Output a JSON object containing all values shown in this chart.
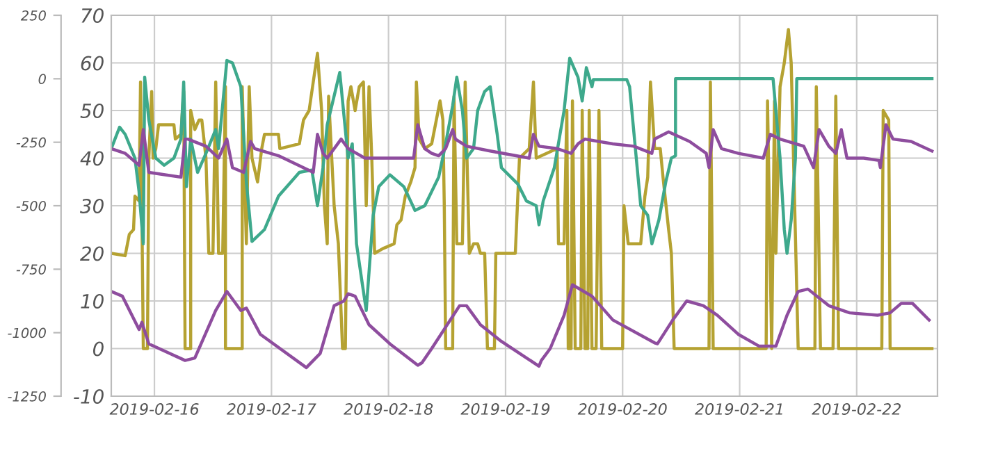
{
  "chart_data": {
    "type": "line",
    "xlim": [
      "2019-02-15T15:09",
      "2019-02-22T16:34"
    ],
    "xticks": [
      "2019-02-16",
      "2019-02-17",
      "2019-02-18",
      "2019-02-19",
      "2019-02-20",
      "2019-02-21",
      "2019-02-22"
    ],
    "ylim": [
      -10,
      70
    ],
    "yticks": [
      -10,
      0,
      10,
      20,
      30,
      40,
      50,
      60,
      70
    ],
    "y2lim": [
      -1250,
      250
    ],
    "y2ticks": [
      -1250,
      -1000,
      -750,
      -500,
      -250,
      0,
      250
    ],
    "grid": true,
    "marker": "none",
    "line_style": "solid",
    "series": [
      {
        "color": "#b5a232",
        "x": [
          "2019-02-15T15:09",
          "2019-02-15T18:00",
          "2019-02-15T18:51",
          "2019-02-15T19:43",
          "2019-02-15T20:00",
          "2019-02-15T20:51",
          "2019-02-15T21:09",
          "2019-02-15T21:43",
          "2019-02-15T22:34",
          "2019-02-15T22:51",
          "2019-02-15T23:26",
          "2019-02-15T23:43",
          "2019-02-16T00:17",
          "2019-02-16T00:51",
          "2019-02-16T04:00",
          "2019-02-16T04:17",
          "2019-02-16T05:26",
          "2019-02-16T06:00",
          "2019-02-16T06:17",
          "2019-02-16T07:26",
          "2019-02-16T07:26",
          "2019-02-16T08:17",
          "2019-02-16T09:09",
          "2019-02-16T09:43",
          "2019-02-16T10:34",
          "2019-02-16T11:09",
          "2019-02-16T12:00",
          "2019-02-16T12:34",
          "2019-02-16T13:09",
          "2019-02-16T14:00",
          "2019-02-16T14:34",
          "2019-02-16T14:34",
          "2019-02-16T18:00",
          "2019-02-16T18:00",
          "2019-02-16T18:51",
          "2019-02-16T19:26",
          "2019-02-16T20:00",
          "2019-02-16T21:09",
          "2019-02-16T22:00",
          "2019-02-16T22:34",
          "2019-02-17T01:26",
          "2019-02-17T01:43",
          "2019-02-17T05:43",
          "2019-02-17T06:34",
          "2019-02-17T07:43",
          "2019-02-17T08:51",
          "2019-02-17T09:26",
          "2019-02-17T10:17",
          "2019-02-17T10:51",
          "2019-02-17T11:26",
          "2019-02-17T11:43",
          "2019-02-17T12:51",
          "2019-02-17T13:43",
          "2019-02-17T14:34",
          "2019-02-17T15:09",
          "2019-02-17T15:43",
          "2019-02-17T16:17",
          "2019-02-17T17:09",
          "2019-02-17T18:00",
          "2019-02-17T18:51",
          "2019-02-17T19:26",
          "2019-02-17T20:00",
          "2019-02-17T20:34",
          "2019-02-17T21:09",
          "2019-02-17T22:51",
          "2019-02-18T01:09",
          "2019-02-18T01:43",
          "2019-02-18T02:34",
          "2019-02-18T03:26",
          "2019-02-18T04:34",
          "2019-02-18T05:26",
          "2019-02-18T05:43",
          "2019-02-18T06:17",
          "2019-02-18T07:26",
          "2019-02-18T08:51",
          "2019-02-18T10:34",
          "2019-02-18T11:09",
          "2019-02-18T11:26",
          "2019-02-18T11:43",
          "2019-02-18T13:09",
          "2019-02-18T13:26",
          "2019-02-18T14:00",
          "2019-02-18T15:09",
          "2019-02-18T15:43",
          "2019-02-18T16:34",
          "2019-02-18T17:26",
          "2019-02-18T18:17",
          "2019-02-18T18:51",
          "2019-02-18T19:43",
          "2019-02-18T20:17",
          "2019-02-18T21:43",
          "2019-02-18T22:00",
          "2019-02-19T02:00",
          "2019-02-19T02:51",
          "2019-02-19T04:51",
          "2019-02-19T05:43",
          "2019-02-19T06:17",
          "2019-02-19T10:34",
          "2019-02-19T10:51",
          "2019-02-19T12:00",
          "2019-02-19T12:34",
          "2019-02-19T12:51",
          "2019-02-19T13:26",
          "2019-02-19T13:43",
          "2019-02-19T14:17",
          "2019-02-19T15:26",
          "2019-02-19T15:43",
          "2019-02-19T16:17",
          "2019-02-19T16:51",
          "2019-02-19T17:09",
          "2019-02-19T17:43",
          "2019-02-19T18:34",
          "2019-02-19T19:09",
          "2019-02-19T19:43",
          "2019-02-20T00:00",
          "2019-02-20T00:17",
          "2019-02-20T01:09",
          "2019-02-20T03:43",
          "2019-02-20T04:34",
          "2019-02-20T05:09",
          "2019-02-20T05:43",
          "2019-02-20T06:34",
          "2019-02-20T07:43",
          "2019-02-20T08:17",
          "2019-02-20T09:26",
          "2019-02-20T10:00",
          "2019-02-20T10:34",
          "2019-02-20T17:43",
          "2019-02-20T18:00",
          "2019-02-20T18:34",
          "2019-02-21T05:26",
          "2019-02-21T05:43",
          "2019-02-21T06:34",
          "2019-02-21T07:09",
          "2019-02-21T07:26",
          "2019-02-21T08:17",
          "2019-02-21T09:09",
          "2019-02-21T10:00",
          "2019-02-21T10:34",
          "2019-02-21T12:00",
          "2019-02-21T15:26",
          "2019-02-21T15:43",
          "2019-02-21T16:34",
          "2019-02-21T19:09",
          "2019-02-21T19:43",
          "2019-02-21T20:17",
          "2019-02-22T05:09",
          "2019-02-22T05:26",
          "2019-02-22T06:34",
          "2019-02-22T06:51",
          "2019-02-22T15:26"
        ],
        "values": [
          20,
          19.5,
          24,
          25,
          32,
          31,
          56,
          0,
          0,
          40,
          54,
          40,
          42,
          47,
          47,
          44,
          45,
          54,
          0,
          0,
          50,
          46,
          48,
          48,
          40,
          20,
          20,
          56,
          20,
          20,
          55,
          0,
          0,
          55,
          22,
          55,
          40,
          35,
          42,
          45,
          45,
          42,
          43,
          48,
          50,
          58,
          62,
          50,
          30,
          22,
          53,
          30,
          22,
          0,
          0,
          52,
          55,
          50,
          55,
          56,
          30,
          55,
          40,
          20,
          21,
          22,
          26,
          27,
          32,
          35,
          38,
          56,
          44,
          42,
          43,
          52,
          48,
          30,
          0,
          0,
          53,
          22,
          22,
          56,
          20,
          22,
          22,
          20,
          20,
          0,
          0,
          20,
          20,
          40,
          42,
          56,
          40,
          42,
          22,
          22,
          50,
          0,
          0,
          52,
          0,
          0,
          50,
          0,
          0,
          50,
          0,
          0,
          50,
          0,
          0,
          30,
          22,
          22,
          32,
          36,
          56,
          42,
          42,
          36,
          25,
          20,
          0,
          0,
          56,
          0,
          0,
          52,
          0,
          52,
          20,
          55,
          60,
          67,
          60,
          0,
          0,
          55,
          0,
          0,
          53,
          0,
          0,
          50,
          48,
          0,
          0
        ]
      },
      {
        "color": "#3ea98c",
        "x": [
          "2019-02-15T15:09",
          "2019-02-15T16:51",
          "2019-02-15T18:00",
          "2019-02-15T20:00",
          "2019-02-15T20:51",
          "2019-02-15T21:43",
          "2019-02-15T22:00",
          "2019-02-15T22:51",
          "2019-02-16T00:17",
          "2019-02-16T02:00",
          "2019-02-16T04:00",
          "2019-02-16T05:26",
          "2019-02-16T06:00",
          "2019-02-16T06:34",
          "2019-02-16T07:26",
          "2019-02-16T08:51",
          "2019-02-16T10:34",
          "2019-02-16T12:34",
          "2019-02-16T13:09",
          "2019-02-16T14:51",
          "2019-02-16T16:00",
          "2019-02-16T17:43",
          "2019-02-16T18:51",
          "2019-02-16T20:00",
          "2019-02-16T22:34",
          "2019-02-17T01:26",
          "2019-02-17T05:43",
          "2019-02-17T08:17",
          "2019-02-17T09:26",
          "2019-02-17T10:34",
          "2019-02-17T11:26",
          "2019-02-17T14:00",
          "2019-02-17T15:43",
          "2019-02-17T16:34",
          "2019-02-17T17:26",
          "2019-02-17T18:34",
          "2019-02-17T19:26",
          "2019-02-17T20:51",
          "2019-02-17T22:00",
          "2019-02-18T00:17",
          "2019-02-18T03:09",
          "2019-02-18T05:26",
          "2019-02-18T07:26",
          "2019-02-18T10:17",
          "2019-02-18T11:43",
          "2019-02-18T13:09",
          "2019-02-18T14:00",
          "2019-02-18T15:09",
          "2019-02-18T16:00",
          "2019-02-18T17:26",
          "2019-02-18T18:17",
          "2019-02-18T19:43",
          "2019-02-18T20:51",
          "2019-02-18T22:17",
          "2019-02-18T23:09",
          "2019-02-19T02:34",
          "2019-02-19T04:17",
          "2019-02-19T06:17",
          "2019-02-19T06:51",
          "2019-02-19T07:43",
          "2019-02-19T10:00",
          "2019-02-19T12:00",
          "2019-02-19T13:09",
          "2019-02-19T14:51",
          "2019-02-19T15:43",
          "2019-02-19T16:34",
          "2019-02-19T17:43",
          "2019-02-19T18:00",
          "2019-02-20T00:51",
          "2019-02-20T01:26",
          "2019-02-20T03:43",
          "2019-02-20T05:09",
          "2019-02-20T06:00",
          "2019-02-20T07:26",
          "2019-02-20T08:51",
          "2019-02-20T10:00",
          "2019-02-20T10:51",
          "2019-02-20T10:51",
          "2019-02-21T06:51",
          "2019-02-21T08:17",
          "2019-02-21T09:09",
          "2019-02-21T09:43",
          "2019-02-21T10:34",
          "2019-02-21T11:26",
          "2019-02-21T11:43",
          "2019-02-22T15:26"
        ],
        "values": [
          42,
          46.5,
          45,
          40,
          33,
          22,
          57,
          48,
          40,
          38.5,
          40,
          44,
          56,
          34,
          44,
          37,
          41,
          46,
          42,
          60.5,
          60,
          55,
          35,
          22.5,
          25,
          32,
          37,
          37.5,
          30,
          38,
          47,
          58,
          40,
          43,
          22,
          14,
          8,
          28,
          34,
          36.5,
          34,
          29,
          30,
          36,
          43,
          51,
          57,
          50,
          40,
          42,
          50,
          54,
          55,
          45,
          38,
          34.5,
          31,
          30,
          26,
          31,
          38,
          50,
          61,
          57,
          52,
          59,
          55,
          56.5,
          56.5,
          55,
          30,
          28,
          22,
          27,
          35,
          40,
          40.5,
          56.7,
          56.7,
          40,
          25,
          20,
          27,
          40,
          56.7,
          56.7
        ]
      },
      {
        "color": "#8e4d9e",
        "x": [
          "2019-02-15T15:09",
          "2019-02-15T18:00",
          "2019-02-15T20:51",
          "2019-02-15T21:43",
          "2019-02-15T22:51",
          "2019-02-16T05:26",
          "2019-02-16T06:17",
          "2019-02-16T06:51",
          "2019-02-16T10:34",
          "2019-02-16T13:09",
          "2019-02-16T14:51",
          "2019-02-16T16:00",
          "2019-02-16T18:17",
          "2019-02-16T19:43",
          "2019-02-16T20:34",
          "2019-02-17T01:26",
          "2019-02-17T08:34",
          "2019-02-17T09:26",
          "2019-02-17T10:34",
          "2019-02-17T11:26",
          "2019-02-17T14:17",
          "2019-02-17T15:43",
          "2019-02-17T19:09",
          "2019-02-18T05:09",
          "2019-02-18T06:00",
          "2019-02-18T07:26",
          "2019-02-18T08:51",
          "2019-02-18T10:17",
          "2019-02-18T11:43",
          "2019-02-18T13:09",
          "2019-02-18T13:43",
          "2019-02-18T16:00",
          "2019-02-18T20:51",
          "2019-02-19T04:51",
          "2019-02-19T05:43",
          "2019-02-19T06:51",
          "2019-02-19T10:34",
          "2019-02-19T13:26",
          "2019-02-19T14:51",
          "2019-02-19T16:17",
          "2019-02-19T22:00",
          "2019-02-20T02:17",
          "2019-02-20T06:00",
          "2019-02-20T06:34",
          "2019-02-20T09:26",
          "2019-02-20T13:43",
          "2019-02-20T17:09",
          "2019-02-20T17:43",
          "2019-02-20T18:34",
          "2019-02-20T20:17",
          "2019-02-20T23:43",
          "2019-02-21T04:51",
          "2019-02-21T06:17",
          "2019-02-21T08:17",
          "2019-02-21T13:09",
          "2019-02-21T15:09",
          "2019-02-21T16:17",
          "2019-02-21T18:17",
          "2019-02-21T19:43",
          "2019-02-21T20:51",
          "2019-02-21T22:00",
          "2019-02-22T01:26",
          "2019-02-22T04:34",
          "2019-02-22T04:51",
          "2019-02-22T06:00",
          "2019-02-22T07:26",
          "2019-02-22T11:09",
          "2019-02-22T15:26"
        ],
        "values": [
          42,
          41,
          38.5,
          46,
          37,
          36,
          44,
          44,
          42.5,
          40,
          44,
          38,
          37,
          43.5,
          42,
          40.5,
          37,
          45,
          41,
          40,
          44,
          42,
          40,
          40,
          47,
          42,
          41,
          40.5,
          42,
          46,
          44,
          42.5,
          41.5,
          40,
          45,
          42.5,
          42,
          41,
          43,
          44,
          43,
          42.5,
          41,
          44,
          45.5,
          43.5,
          41,
          38,
          46,
          42,
          41,
          40,
          45,
          44,
          42.5,
          38,
          46,
          42.5,
          41,
          46,
          40,
          40,
          39.5,
          38,
          47,
          44,
          43.5,
          41.5
        ]
      },
      {
        "color": "#8e4d9e",
        "x": [
          "2019-02-15T15:09",
          "2019-02-15T17:26",
          "2019-02-15T20:51",
          "2019-02-15T21:26",
          "2019-02-15T22:51",
          "2019-02-16T06:17",
          "2019-02-16T08:17",
          "2019-02-16T12:34",
          "2019-02-16T14:51",
          "2019-02-16T17:43",
          "2019-02-16T18:51",
          "2019-02-16T21:43",
          "2019-02-17T07:09",
          "2019-02-17T10:00",
          "2019-02-17T12:51",
          "2019-02-17T14:51",
          "2019-02-17T15:43",
          "2019-02-17T17:09",
          "2019-02-17T20:00",
          "2019-02-18T00:17",
          "2019-02-18T06:00",
          "2019-02-18T06:51",
          "2019-02-18T08:51",
          "2019-02-18T14:34",
          "2019-02-18T16:00",
          "2019-02-18T18:51",
          "2019-02-18T23:09",
          "2019-02-19T06:51",
          "2019-02-19T07:20",
          "2019-02-19T09:09",
          "2019-02-19T12:00",
          "2019-02-19T13:43",
          "2019-02-19T17:43",
          "2019-02-19T22:00",
          "2019-02-20T06:34",
          "2019-02-20T07:09",
          "2019-02-20T10:17",
          "2019-02-20T13:09",
          "2019-02-20T16:34",
          "2019-02-20T19:26",
          "2019-02-20T23:43",
          "2019-02-21T04:00",
          "2019-02-21T07:26",
          "2019-02-21T09:43",
          "2019-02-21T12:00",
          "2019-02-21T14:00",
          "2019-02-21T18:17",
          "2019-02-21T22:34",
          "2019-02-22T04:17",
          "2019-02-22T06:51",
          "2019-02-22T09:09",
          "2019-02-22T11:26",
          "2019-02-22T14:51"
        ],
        "values": [
          12,
          11,
          4,
          5.5,
          1,
          -2.5,
          -2,
          8,
          12,
          8,
          8.5,
          3,
          -4,
          -1,
          9,
          10,
          11.5,
          11,
          5,
          1,
          -3.5,
          -3,
          0,
          9,
          9,
          5,
          1.5,
          -3.7,
          -2.5,
          0,
          7,
          13.4,
          11,
          6,
          1.2,
          1,
          6,
          10,
          9,
          7,
          3,
          0.5,
          0.5,
          7,
          12,
          12.5,
          9,
          7.5,
          7,
          7.5,
          9.5,
          9.5,
          6
        ]
      }
    ]
  }
}
